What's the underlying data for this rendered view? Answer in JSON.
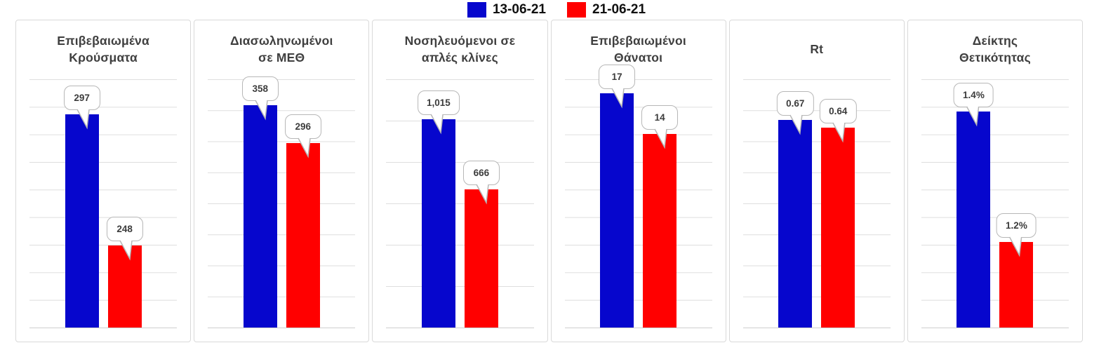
{
  "legend": {
    "items": [
      {
        "label": "13-06-21",
        "color": "#0606cd"
      },
      {
        "label": "21-06-21",
        "color": "#ff0000"
      }
    ]
  },
  "chart_data": [
    {
      "type": "bar",
      "title": "Επιβεβαιωμένα\nΚρούσματα",
      "categories": [
        "13-06-21",
        "21-06-21"
      ],
      "values": [
        297,
        248
      ],
      "value_labels": [
        "297",
        "248"
      ],
      "ylim": [
        220,
        310
      ],
      "grid_intervals": 9,
      "bar_height_pct": [
        85.9,
        33.1
      ],
      "grid": true,
      "axis_tick_labels_visible": false,
      "legend_position": "top-shared"
    },
    {
      "type": "bar",
      "title": "Διασωληνωμένοι\nσε ΜΕΘ",
      "categories": [
        "13-06-21",
        "21-06-21"
      ],
      "values": [
        358,
        296
      ],
      "value_labels": [
        "358",
        "296"
      ],
      "ylim": [
        0,
        400
      ],
      "grid_intervals": 8,
      "bar_height_pct": [
        89.5,
        74.3
      ],
      "grid": true,
      "axis_tick_labels_visible": false,
      "legend_position": "top-shared"
    },
    {
      "type": "bar",
      "title": "Νοσηλευόμενοι σε\nαπλές κλίνες",
      "categories": [
        "13-06-21",
        "21-06-21"
      ],
      "values": [
        1015,
        666
      ],
      "value_labels": [
        "1,015",
        "666"
      ],
      "ylim": [
        0,
        1200
      ],
      "grid_intervals": 6,
      "bar_height_pct": [
        83.9,
        55.6
      ],
      "grid": true,
      "axis_tick_labels_visible": false,
      "legend_position": "top-shared"
    },
    {
      "type": "bar",
      "title": "Επιβεβαιωμένοι\nΘάνατοι",
      "categories": [
        "13-06-21",
        "21-06-21"
      ],
      "values": [
        17,
        14
      ],
      "value_labels": [
        "17",
        "14"
      ],
      "ylim": [
        0,
        18
      ],
      "grid_intervals": 9,
      "bar_height_pct": [
        94.3,
        78.0
      ],
      "grid": true,
      "axis_tick_labels_visible": false,
      "legend_position": "top-shared"
    },
    {
      "type": "bar",
      "title": "Rt",
      "categories": [
        "13-06-21",
        "21-06-21"
      ],
      "values": [
        0.67,
        0.64
      ],
      "value_labels": [
        "0.67",
        "0.64"
      ],
      "ylim": [
        0,
        0.8
      ],
      "grid_intervals": 8,
      "bar_height_pct": [
        83.6,
        80.5
      ],
      "grid": true,
      "axis_tick_labels_visible": false,
      "legend_position": "top-shared"
    },
    {
      "type": "bar",
      "title": "Δείκτης\nΘετικότητας",
      "categories": [
        "13-06-21",
        "21-06-21"
      ],
      "values": [
        1.4,
        1.2
      ],
      "value_labels": [
        "1.4%",
        "1.2%"
      ],
      "ylim": [
        1.08,
        1.44
      ],
      "grid_intervals": 9,
      "bar_height_pct": [
        87.0,
        34.5
      ],
      "grid": true,
      "axis_tick_labels_visible": false,
      "legend_position": "top-shared"
    }
  ]
}
